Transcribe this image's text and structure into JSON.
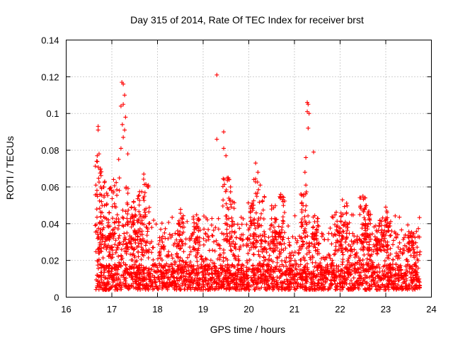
{
  "chart_data": {
    "type": "scatter",
    "title": "Day 315 of 2014, Rate Of TEC Index for receiver brst",
    "xlabel": "GPS time / hours",
    "ylabel": "ROTI / TECUs",
    "xlim": [
      16,
      24
    ],
    "ylim": [
      0,
      0.14
    ],
    "x_ticks": [
      16,
      17,
      18,
      19,
      20,
      21,
      22,
      23,
      24
    ],
    "x_tick_labels": [
      "16",
      "17",
      "18",
      "19",
      "20",
      "21",
      "22",
      "23",
      "24"
    ],
    "y_ticks": [
      0,
      0.02,
      0.04,
      0.06,
      0.08,
      0.1,
      0.12,
      0.14
    ],
    "y_tick_labels": [
      "0",
      "0.02",
      "0.04",
      "0.06",
      "0.08",
      "0.1",
      "0.12",
      "0.14"
    ],
    "grid": true,
    "marker": "+",
    "color": "#ff0000",
    "series": [
      {
        "name": "ROTI",
        "notable_points": [
          [
            16.7,
            0.093
          ],
          [
            16.7,
            0.091
          ],
          [
            16.68,
            0.077
          ],
          [
            16.72,
            0.078
          ],
          [
            16.75,
            0.07
          ],
          [
            17.22,
            0.117
          ],
          [
            17.25,
            0.116
          ],
          [
            17.2,
            0.104
          ],
          [
            17.25,
            0.105
          ],
          [
            17.28,
            0.11
          ],
          [
            17.3,
            0.098
          ],
          [
            17.23,
            0.094
          ],
          [
            17.28,
            0.091
          ],
          [
            17.25,
            0.087
          ],
          [
            17.2,
            0.081
          ],
          [
            17.35,
            0.078
          ],
          [
            17.15,
            0.075
          ],
          [
            17.7,
            0.067
          ],
          [
            17.8,
            0.06
          ],
          [
            19.3,
            0.121
          ],
          [
            19.3,
            0.086
          ],
          [
            19.45,
            0.09
          ],
          [
            19.45,
            0.081
          ],
          [
            19.5,
            0.077
          ],
          [
            19.55,
            0.065
          ],
          [
            19.6,
            0.06
          ],
          [
            20.15,
            0.073
          ],
          [
            20.2,
            0.068
          ],
          [
            20.25,
            0.061
          ],
          [
            20.7,
            0.056
          ],
          [
            20.75,
            0.052
          ],
          [
            21.28,
            0.106
          ],
          [
            21.3,
            0.105
          ],
          [
            21.28,
            0.101
          ],
          [
            21.32,
            0.1
          ],
          [
            21.3,
            0.092
          ],
          [
            21.42,
            0.079
          ],
          [
            21.25,
            0.076
          ],
          [
            21.23,
            0.068
          ],
          [
            21.25,
            0.061
          ],
          [
            21.2,
            0.055
          ],
          [
            22.05,
            0.053
          ],
          [
            22.5,
            0.055
          ],
          [
            22.55,
            0.054
          ],
          [
            23.0,
            0.049
          ]
        ],
        "bulk": {
          "x_range": [
            16.65,
            23.75
          ],
          "y_core_range": [
            0.004,
            0.035
          ],
          "y_upper_envelope_approx": 0.045,
          "y_min": 0.004
        }
      }
    ]
  }
}
